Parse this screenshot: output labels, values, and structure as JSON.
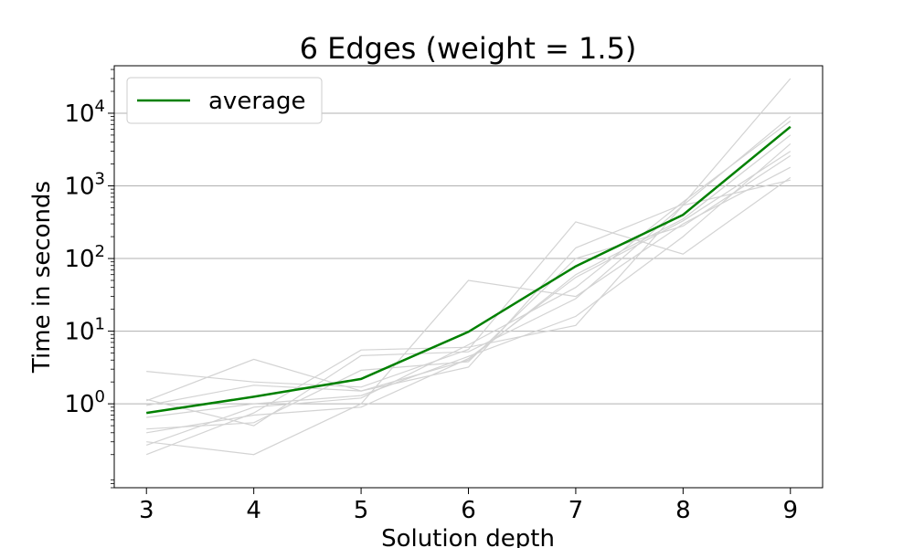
{
  "chart_data": {
    "type": "line",
    "title": "6 Edges (weight = 1.5)",
    "xlabel": "Solution depth",
    "ylabel": "Time in seconds",
    "x": [
      3,
      4,
      5,
      6,
      7,
      8,
      9
    ],
    "xlim": [
      2.7,
      9.3
    ],
    "ylim": [
      0.07,
      45000
    ],
    "yscale": "log",
    "y_ticks": [
      {
        "value": 1,
        "base": "10",
        "exp": "0"
      },
      {
        "value": 10,
        "base": "10",
        "exp": "1"
      },
      {
        "value": 100,
        "base": "10",
        "exp": "2"
      },
      {
        "value": 1000,
        "base": "10",
        "exp": "3"
      },
      {
        "value": 10000,
        "base": "10",
        "exp": "4"
      }
    ],
    "grid": "horizontal",
    "legend_position": "top-left",
    "series": [
      {
        "name": "average",
        "color": "#008000",
        "values": [
          0.75,
          1.25,
          2.2,
          9.8,
          78,
          400,
          6500
        ]
      }
    ],
    "runs_color": "#d3d3d3",
    "runs": [
      [
        2.8,
        2.0,
        1.7,
        5.6,
        320,
        115,
        1300
      ],
      [
        1.1,
        4.1,
        1.5,
        3.2,
        140,
        560,
        30000
      ],
      [
        0.2,
        0.75,
        5.5,
        6.0,
        12,
        540,
        9000
      ],
      [
        0.3,
        0.2,
        1.0,
        50,
        30,
        300,
        1800
      ],
      [
        1.15,
        0.5,
        4.6,
        5.2,
        28,
        540,
        1200
      ],
      [
        0.4,
        0.7,
        0.9,
        4.2,
        55,
        330,
        3000
      ],
      [
        0.65,
        1.0,
        1.3,
        4.5,
        16,
        200,
        3800
      ],
      [
        0.45,
        0.55,
        2.9,
        3.8,
        100,
        280,
        2600
      ],
      [
        0.27,
        0.9,
        1.2,
        6.5,
        40,
        600,
        7800
      ],
      [
        0.95,
        1.8,
        1.5,
        4.0,
        60,
        350,
        5000
      ]
    ]
  }
}
